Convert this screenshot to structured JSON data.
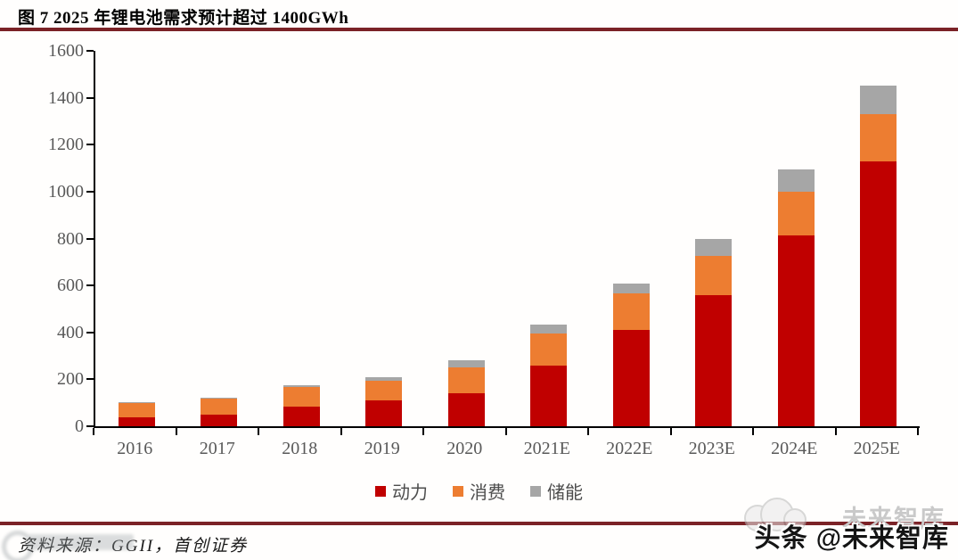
{
  "figure": {
    "title": "图  7 2025 年锂电池需求预计超过 1400GWh",
    "source_note": "资料来源：GGII，首创证券"
  },
  "watermark": {
    "main_text": "头条 @未来智库",
    "ghost_text": "未来智库"
  },
  "colors": {
    "accent_rule": "#7b2227",
    "power_red": "#c00000",
    "consumer_orange": "#ed7d31",
    "storage_gray": "#a6a6a6",
    "axis_label_gray": "#595959"
  },
  "chart_data": {
    "type": "bar",
    "stacked": true,
    "title": "图 7 2025 年锂电池需求预计超过 1400GWh",
    "unit": "GWh",
    "categories": [
      "2016",
      "2017",
      "2018",
      "2019",
      "2020",
      "2021E",
      "2022E",
      "2023E",
      "2024E",
      "2025E"
    ],
    "series": [
      {
        "name": "动力",
        "color": "#c00000",
        "values": [
          38,
          50,
          85,
          110,
          140,
          260,
          410,
          560,
          815,
          1130
        ]
      },
      {
        "name": "消费",
        "color": "#ed7d31",
        "values": [
          60,
          67,
          82,
          85,
          110,
          135,
          155,
          165,
          185,
          200
        ]
      },
      {
        "name": "储能",
        "color": "#a6a6a6",
        "values": [
          3,
          3,
          8,
          15,
          30,
          40,
          45,
          75,
          95,
          120
        ]
      }
    ],
    "totals": [
      101,
      120,
      175,
      210,
      280,
      435,
      610,
      800,
      1095,
      1450
    ],
    "xlabel": "",
    "ylabel": "",
    "ylim": [
      0,
      1600
    ],
    "ytick_step": 200,
    "yticks": [
      0,
      200,
      400,
      600,
      800,
      1000,
      1200,
      1400,
      1600
    ],
    "grid": false,
    "legend_position": "bottom"
  }
}
